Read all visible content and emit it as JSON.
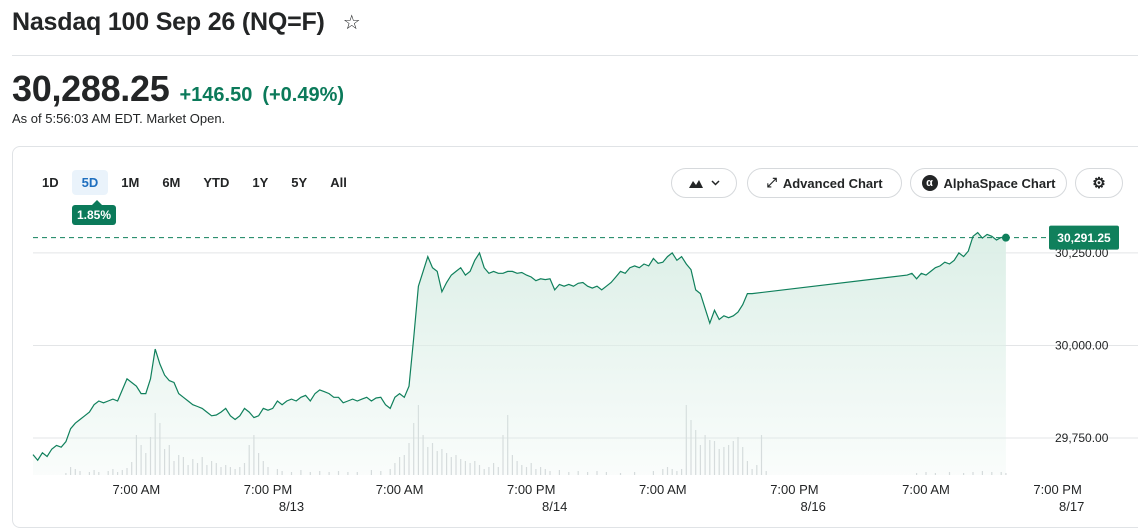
{
  "header": {
    "title": "Nasdaq 100 Sep 26 (NQ=F)",
    "price": "30,288.25",
    "change": "+146.50",
    "change_pct": "(+0.49%)",
    "as_of": "As of 5:56:03 AM EDT. Market Open."
  },
  "toolbar": {
    "ranges": [
      "1D",
      "5D",
      "1M",
      "6M",
      "YTD",
      "1Y",
      "5Y",
      "All"
    ],
    "active_range": "5D",
    "range_change": "1.85%",
    "advanced_chart": "Advanced Chart",
    "alphaspace_chart": "AlphaSpace Chart"
  },
  "colors": {
    "up": "#0b7a5a",
    "line": "#10805c",
    "fill": "#dcefe7",
    "grid": "#e3e5e7"
  },
  "chart_data": {
    "type": "area",
    "title": "",
    "xlabel": "",
    "ylabel": "",
    "ylim": [
      29650,
      30320
    ],
    "y_ticks": [
      {
        "label": "30,000.00",
        "value": 30000
      },
      {
        "label": "29,750.00",
        "value": 29750
      }
    ],
    "partial_tick": {
      "label": "30,250.00",
      "value": 30250
    },
    "current_label": "30,291.25",
    "current_value": 30291.25,
    "x_ticks": [
      {
        "label": "7:00 AM",
        "i": 22
      },
      {
        "label": "7:00 PM",
        "i": 50
      },
      {
        "label": "7:00 AM",
        "i": 78
      },
      {
        "label": "7:00 PM",
        "i": 106
      },
      {
        "label": "7:00 AM",
        "i": 134
      },
      {
        "label": "7:00 PM",
        "i": 162
      },
      {
        "label": "7:00 AM",
        "i": 190
      },
      {
        "label": "7:00 PM",
        "i": 218
      }
    ],
    "date_labels": [
      {
        "label": "8/13",
        "i": 55
      },
      {
        "label": "8/14",
        "i": 111
      },
      {
        "label": "8/16",
        "i": 166
      },
      {
        "label": "8/17",
        "i": 221
      }
    ],
    "n_slots": 238,
    "series": [
      {
        "values": [
          [
            0,
            29705
          ],
          [
            1,
            29690
          ],
          [
            2,
            29710
          ],
          [
            3,
            29700
          ],
          [
            4,
            29720
          ],
          [
            5,
            29730
          ],
          [
            6,
            29725
          ],
          [
            7,
            29740
          ],
          [
            8,
            29775
          ],
          [
            9,
            29790
          ],
          [
            10,
            29800
          ],
          [
            11,
            29810
          ],
          [
            12,
            29820
          ],
          [
            13,
            29840
          ],
          [
            14,
            29850
          ],
          [
            15,
            29845
          ],
          [
            16,
            29850
          ],
          [
            17,
            29855
          ],
          [
            18,
            29850
          ],
          [
            19,
            29880
          ],
          [
            20,
            29910
          ],
          [
            21,
            29900
          ],
          [
            22,
            29890
          ],
          [
            23,
            29870
          ],
          [
            24,
            29870
          ],
          [
            25,
            29910
          ],
          [
            26,
            29990
          ],
          [
            27,
            29950
          ],
          [
            28,
            29920
          ],
          [
            29,
            29905
          ],
          [
            30,
            29900
          ],
          [
            31,
            29870
          ],
          [
            32,
            29860
          ],
          [
            33,
            29850
          ],
          [
            34,
            29840
          ],
          [
            35,
            29835
          ],
          [
            36,
            29830
          ],
          [
            37,
            29820
          ],
          [
            38,
            29810
          ],
          [
            39,
            29812
          ],
          [
            40,
            29820
          ],
          [
            41,
            29830
          ],
          [
            42,
            29810
          ],
          [
            43,
            29800
          ],
          [
            44,
            29810
          ],
          [
            45,
            29830
          ],
          [
            46,
            29820
          ],
          [
            47,
            29805
          ],
          [
            48,
            29810
          ],
          [
            49,
            29830
          ],
          [
            50,
            29825
          ],
          [
            51,
            29830
          ],
          [
            52,
            29850
          ],
          [
            53,
            29840
          ],
          [
            54,
            29850
          ],
          [
            55,
            29855
          ],
          [
            56,
            29850
          ],
          [
            57,
            29860
          ],
          [
            58,
            29865
          ],
          [
            59,
            29850
          ],
          [
            60,
            29870
          ],
          [
            61,
            29880
          ],
          [
            62,
            29875
          ],
          [
            63,
            29870
          ],
          [
            64,
            29860
          ],
          [
            65,
            29860
          ],
          [
            66,
            29845
          ],
          [
            67,
            29850
          ],
          [
            68,
            29855
          ],
          [
            69,
            29850
          ],
          [
            70,
            29855
          ],
          [
            71,
            29860
          ],
          [
            72,
            29850
          ],
          [
            73,
            29858
          ],
          [
            74,
            29860
          ],
          [
            75,
            29840
          ],
          [
            76,
            29830
          ],
          [
            77,
            29860
          ],
          [
            78,
            29870
          ],
          [
            79,
            29860
          ],
          [
            80,
            29890
          ],
          [
            81,
            30020
          ],
          [
            82,
            30160
          ],
          [
            83,
            30200
          ],
          [
            84,
            30240
          ],
          [
            85,
            30210
          ],
          [
            86,
            30200
          ],
          [
            87,
            30145
          ],
          [
            88,
            30170
          ],
          [
            89,
            30190
          ],
          [
            90,
            30200
          ],
          [
            91,
            30210
          ],
          [
            92,
            30190
          ],
          [
            93,
            30200
          ],
          [
            94,
            30230
          ],
          [
            95,
            30250
          ],
          [
            96,
            30210
          ],
          [
            97,
            30195
          ],
          [
            98,
            30200
          ],
          [
            99,
            30195
          ],
          [
            100,
            30195
          ],
          [
            101,
            30200
          ],
          [
            102,
            30200
          ],
          [
            103,
            30195
          ],
          [
            104,
            30197
          ],
          [
            105,
            30190
          ],
          [
            106,
            30185
          ],
          [
            107,
            30175
          ],
          [
            108,
            30180
          ],
          [
            109,
            30178
          ],
          [
            110,
            30180
          ],
          [
            111,
            30150
          ],
          [
            112,
            30165
          ],
          [
            113,
            30160
          ],
          [
            114,
            30165
          ],
          [
            115,
            30160
          ],
          [
            116,
            30168
          ],
          [
            117,
            30170
          ],
          [
            118,
            30160
          ],
          [
            119,
            30155
          ],
          [
            120,
            30160
          ],
          [
            121,
            30150
          ],
          [
            122,
            30160
          ],
          [
            123,
            30170
          ],
          [
            124,
            30185
          ],
          [
            125,
            30200
          ],
          [
            126,
            30195
          ],
          [
            127,
            30210
          ],
          [
            128,
            30215
          ],
          [
            129,
            30210
          ],
          [
            130,
            30220
          ],
          [
            131,
            30215
          ],
          [
            132,
            30235
          ],
          [
            133,
            30222
          ],
          [
            134,
            30225
          ],
          [
            135,
            30240
          ],
          [
            136,
            30250
          ],
          [
            137,
            30230
          ],
          [
            138,
            30240
          ],
          [
            139,
            30220
          ],
          [
            140,
            30205
          ],
          [
            141,
            30150
          ],
          [
            142,
            30140
          ],
          [
            143,
            30100
          ],
          [
            144,
            30060
          ],
          [
            145,
            30095
          ],
          [
            146,
            30070
          ],
          [
            147,
            30080
          ],
          [
            148,
            30075
          ],
          [
            149,
            30080
          ],
          [
            150,
            30090
          ],
          [
            151,
            30110
          ],
          [
            152,
            30140
          ],
          [
            153,
            30140
          ],
          [
            186,
            30190
          ],
          [
            187,
            30195
          ],
          [
            188,
            30180
          ],
          [
            189,
            30195
          ],
          [
            190,
            30190
          ],
          [
            191,
            30200
          ],
          [
            192,
            30210
          ],
          [
            193,
            30215
          ],
          [
            194,
            30225
          ],
          [
            195,
            30220
          ],
          [
            196,
            30230
          ],
          [
            197,
            30250
          ],
          [
            198,
            30240
          ],
          [
            199,
            30255
          ],
          [
            200,
            30295
          ],
          [
            201,
            30305
          ],
          [
            202,
            30290
          ],
          [
            203,
            30300
          ],
          [
            204,
            30295
          ],
          [
            205,
            30285
          ],
          [
            206,
            30292
          ],
          [
            207,
            30288
          ]
        ]
      }
    ],
    "volume": [
      [
        7,
        2
      ],
      [
        8,
        8
      ],
      [
        9,
        6
      ],
      [
        10,
        4
      ],
      [
        12,
        3
      ],
      [
        13,
        5
      ],
      [
        14,
        3
      ],
      [
        16,
        4
      ],
      [
        17,
        6
      ],
      [
        18,
        3
      ],
      [
        19,
        5
      ],
      [
        20,
        7
      ],
      [
        21,
        13
      ],
      [
        22,
        40
      ],
      [
        23,
        30
      ],
      [
        24,
        22
      ],
      [
        25,
        38
      ],
      [
        26,
        62
      ],
      [
        27,
        52
      ],
      [
        28,
        26
      ],
      [
        29,
        30
      ],
      [
        30,
        14
      ],
      [
        31,
        20
      ],
      [
        32,
        18
      ],
      [
        33,
        10
      ],
      [
        34,
        16
      ],
      [
        35,
        12
      ],
      [
        36,
        18
      ],
      [
        37,
        10
      ],
      [
        38,
        14
      ],
      [
        39,
        12
      ],
      [
        40,
        8
      ],
      [
        41,
        10
      ],
      [
        42,
        8
      ],
      [
        43,
        6
      ],
      [
        44,
        8
      ],
      [
        45,
        12
      ],
      [
        46,
        30
      ],
      [
        47,
        40
      ],
      [
        48,
        22
      ],
      [
        49,
        14
      ],
      [
        50,
        8
      ],
      [
        52,
        6
      ],
      [
        53,
        4
      ],
      [
        55,
        3
      ],
      [
        57,
        5
      ],
      [
        59,
        3
      ],
      [
        61,
        4
      ],
      [
        63,
        3
      ],
      [
        65,
        4
      ],
      [
        67,
        3
      ],
      [
        69,
        3
      ],
      [
        72,
        5
      ],
      [
        74,
        4
      ],
      [
        76,
        6
      ],
      [
        77,
        12
      ],
      [
        78,
        18
      ],
      [
        79,
        20
      ],
      [
        80,
        32
      ],
      [
        81,
        52
      ],
      [
        82,
        70
      ],
      [
        83,
        40
      ],
      [
        84,
        28
      ],
      [
        85,
        32
      ],
      [
        86,
        24
      ],
      [
        87,
        26
      ],
      [
        88,
        22
      ],
      [
        89,
        18
      ],
      [
        90,
        20
      ],
      [
        91,
        16
      ],
      [
        92,
        14
      ],
      [
        93,
        12
      ],
      [
        94,
        14
      ],
      [
        95,
        10
      ],
      [
        96,
        6
      ],
      [
        97,
        8
      ],
      [
        98,
        12
      ],
      [
        99,
        8
      ],
      [
        100,
        40
      ],
      [
        101,
        60
      ],
      [
        102,
        20
      ],
      [
        103,
        14
      ],
      [
        104,
        10
      ],
      [
        105,
        8
      ],
      [
        106,
        12
      ],
      [
        107,
        6
      ],
      [
        108,
        8
      ],
      [
        109,
        6
      ],
      [
        110,
        4
      ],
      [
        112,
        5
      ],
      [
        114,
        3
      ],
      [
        116,
        4
      ],
      [
        118,
        3
      ],
      [
        120,
        4
      ],
      [
        122,
        3
      ],
      [
        125,
        2
      ],
      [
        128,
        3
      ],
      [
        132,
        4
      ],
      [
        134,
        6
      ],
      [
        135,
        8
      ],
      [
        136,
        6
      ],
      [
        137,
        4
      ],
      [
        138,
        6
      ],
      [
        139,
        70
      ],
      [
        140,
        55
      ],
      [
        141,
        45
      ],
      [
        142,
        30
      ],
      [
        143,
        40
      ],
      [
        144,
        35
      ],
      [
        145,
        34
      ],
      [
        146,
        26
      ],
      [
        147,
        28
      ],
      [
        148,
        30
      ],
      [
        149,
        34
      ],
      [
        150,
        38
      ],
      [
        151,
        28
      ],
      [
        152,
        14
      ],
      [
        153,
        6
      ],
      [
        154,
        10
      ],
      [
        155,
        40
      ],
      [
        156,
        4
      ],
      [
        188,
        2
      ],
      [
        190,
        3
      ],
      [
        192,
        2
      ],
      [
        195,
        3
      ],
      [
        198,
        2
      ],
      [
        200,
        3
      ],
      [
        202,
        4
      ],
      [
        204,
        3
      ],
      [
        206,
        3
      ],
      [
        207,
        2
      ]
    ]
  }
}
